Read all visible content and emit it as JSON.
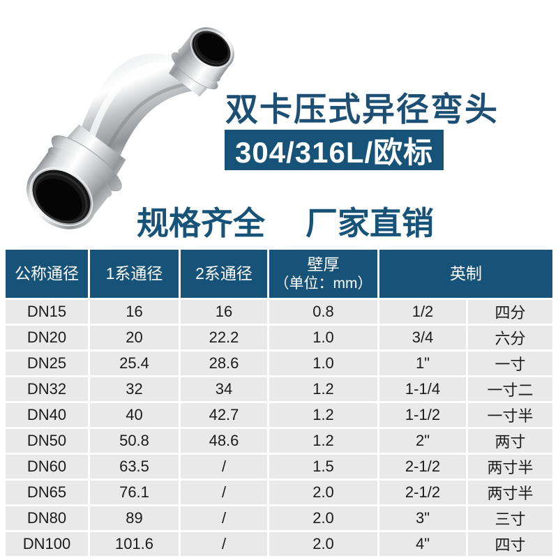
{
  "product": {
    "title": "双卡压式异径弯头",
    "badge": "304/316L/欧标",
    "slogan_left": "规格齐全",
    "slogan_right": "厂家直销",
    "image_name": "stainless-steel-press-fit-reducing-elbow-photo"
  },
  "colors": {
    "brand_blue": "#175379",
    "title_blue": "#1d4e74",
    "header_text": "#ffffff",
    "row_gray": "#e9e9e9",
    "cell_text": "#1b1b1b",
    "seal_ring_black": "#111111",
    "steel_light": "#f2f3f4",
    "steel_dark": "#8f9396"
  },
  "table": {
    "headers": {
      "col1": "公称通径",
      "col2": "1系通径",
      "col3": "2系通径",
      "col4_line1": "壁厚",
      "col4_line2": "（单位：mm）",
      "col5": "英制"
    },
    "rows": [
      [
        "DN15",
        "16",
        "16",
        "0.8",
        "1/2",
        "四分"
      ],
      [
        "DN20",
        "20",
        "22.2",
        "1.0",
        "3/4",
        "六分"
      ],
      [
        "DN25",
        "25.4",
        "28.6",
        "1.0",
        "1\"",
        "一寸"
      ],
      [
        "DN32",
        "32",
        "34",
        "1.2",
        "1-1/4",
        "一寸二"
      ],
      [
        "DN40",
        "40",
        "42.7",
        "1.2",
        "1-1/2",
        "一寸半"
      ],
      [
        "DN50",
        "50.8",
        "48.6",
        "1.2",
        "2\"",
        "两寸"
      ],
      [
        "DN60",
        "63.5",
        "/",
        "1.5",
        "2-1/2",
        "两寸半"
      ],
      [
        "DN65",
        "76.1",
        "/",
        "2.0",
        "2-1/2",
        "两寸半"
      ],
      [
        "DN80",
        "89",
        "/",
        "2.0",
        "3\"",
        "三寸"
      ],
      [
        "DN100",
        "101.6",
        "/",
        "2.0",
        "4\"",
        "四寸"
      ]
    ]
  }
}
